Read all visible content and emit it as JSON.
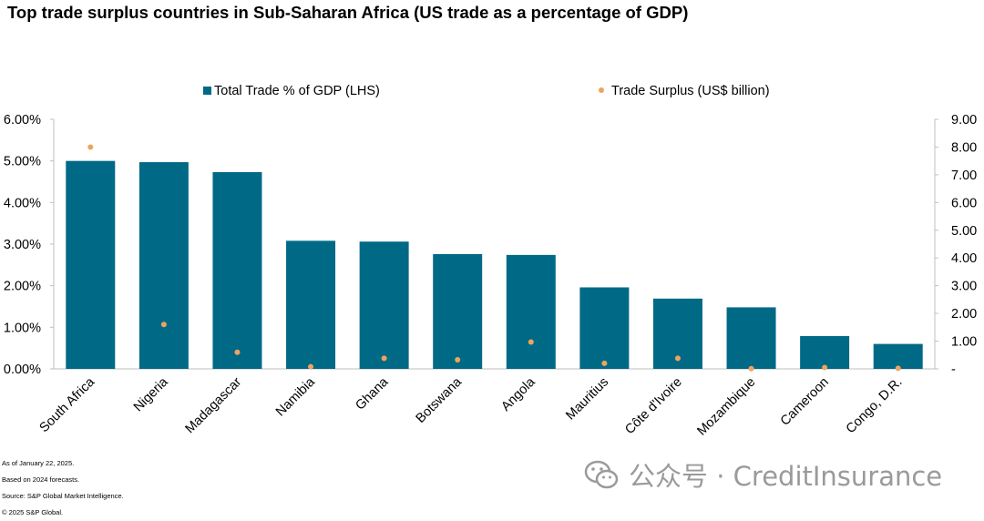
{
  "title": "Top trade surplus countries in Sub-Saharan Africa (US trade as a percentage of GDP)",
  "notes": [
    "As of January 22, 2025.",
    "Based on 2024 forecasts.",
    "Source: S&P Global Market Intelligence.",
    "© 2025 S&P Global."
  ],
  "watermark": "公众号 · CreditInsurance",
  "chart_data": {
    "type": "bar",
    "categories": [
      "South Africa",
      "Nigeria",
      "Madagascar",
      "Namibia",
      "Ghana",
      "Botswana",
      "Angola",
      "Mauritius",
      "Côte d'Ivoire",
      "Mozambique",
      "Cameroon",
      "Congo, D.R."
    ],
    "series": [
      {
        "name": "Total Trade % of GDP (LHS)",
        "type": "bar",
        "axis": "left",
        "unit": "%",
        "values": [
          5.0,
          4.97,
          4.73,
          3.08,
          3.06,
          2.76,
          2.74,
          1.96,
          1.69,
          1.48,
          0.79,
          0.6
        ]
      },
      {
        "name": "Trade Surplus (US$ billion)",
        "type": "scatter",
        "axis": "right",
        "values": [
          8.0,
          1.6,
          0.6,
          0.08,
          0.38,
          0.33,
          0.97,
          0.2,
          0.38,
          0.01,
          0.05,
          0.02
        ]
      }
    ],
    "y_left": {
      "min": 0,
      "max": 6,
      "ticks": [
        "0.00%",
        "1.00%",
        "2.00%",
        "3.00%",
        "4.00%",
        "5.00%",
        "6.00%"
      ]
    },
    "y_right": {
      "min": 0,
      "max": 9,
      "ticks": [
        "-",
        "1.00",
        "2.00",
        "3.00",
        "4.00",
        "5.00",
        "6.00",
        "7.00",
        "8.00",
        "9.00"
      ]
    },
    "grid": false,
    "legend_position": "top",
    "colors": {
      "bar": "#006a86",
      "dot": "#f0a35e",
      "axis": "#bfbfbf"
    }
  }
}
